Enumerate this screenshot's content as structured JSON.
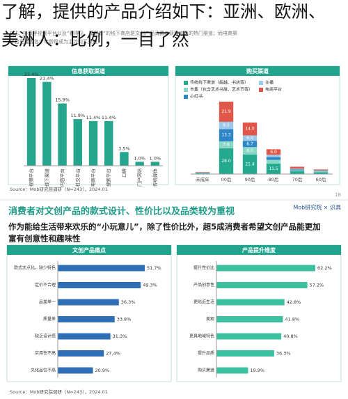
{
  "caption": {
    "lines": [
      "了解，提供的产品介绍如下：亚洲、欧洲、",
      "美洲人：比例，一目了然"
    ]
  },
  "slides": [
    {
      "intro": [
        "B站、抖音等视频平台以及“看得见、摸得着”的线下商店是文创产品消费者获取信息的热门渠道；而电商渠",
        "平台已覆盖各个年龄段成为主流购买渠道"
      ],
      "source": "Source：Mob研究院调研（N=243），2024.01",
      "page": "18"
    },
    {
      "title": "消费者对文创产品的款式设计、性价比以及品类较为重视",
      "subtitle": [
        "作为能给生活带来欢乐的“小玩意儿”，除了性价比外，超5成消费者希望文创产品能更加",
        "富有创意性和趣味性"
      ],
      "logo": "Mob研究院 × 识具",
      "source": "Source：Mob研究院调研（N=243），2024.01"
    }
  ],
  "chart_data": [
    {
      "type": "bar",
      "title": "信息获取渠道",
      "categories": [
        "视频平台",
        "线下渠道",
        "内容平台",
        "社交平台",
        "电商平台",
        "搜索平台",
        "口碑",
        "门户网站",
        "传统媒体"
      ],
      "values": [
        22.4,
        21.4,
        15.9,
        11.9,
        11.4,
        11.4,
        3.5,
        1.0,
        1.0
      ],
      "value_labels": [
        "22.4%",
        "21.4%",
        "15.9%",
        "11.9%",
        "11.4%",
        "11.4%",
        "3.5%",
        "1.0%",
        "1.0%"
      ],
      "color": "#25a48e"
    },
    {
      "type": "stacked_bar",
      "title": "购买渠道",
      "categories": [
        "未成年",
        "00后",
        "90后",
        "80后",
        "70后",
        "60后"
      ],
      "series": [
        {
          "name": "传统线下渠道（超越、书店等）",
          "color": "#25a98f",
          "values": [
            0.8,
            28.0,
            21.4,
            11.5,
            3.0,
            2.0
          ],
          "value_labels": [
            null,
            "28.0",
            "21.4",
            "11.5",
            null,
            null
          ]
        },
        {
          "name": "市集（包含艺术书展、艺术节等）",
          "color": "#8ad8c8",
          "values": [
            0.3,
            7.6,
            8.0,
            4.0,
            1.0,
            1.0
          ],
          "value_labels": [
            null,
            "7.6",
            "8.0",
            null,
            null,
            null
          ]
        },
        {
          "name": "小红书",
          "color": "#2e86c9",
          "values": [
            0.3,
            13.3,
            6.7,
            3.0,
            1.0,
            0.5
          ],
          "value_labels": [
            null,
            "13.3",
            "6.7",
            null,
            null,
            null
          ]
        },
        {
          "name": "主播",
          "color": "#9cc8ea",
          "values": [
            0.3,
            8.0,
            6.0,
            2.5,
            1.0,
            0.5
          ],
          "value_labels": [
            null,
            "8.0",
            "6.0",
            null,
            null,
            null
          ]
        },
        {
          "name": "电商平台",
          "color": "#e0574a",
          "values": [
            0.5,
            21.9,
            14.0,
            6.0,
            2.0,
            1.0
          ],
          "value_labels": [
            null,
            "21.9",
            "14.0",
            "6.0",
            null,
            null
          ]
        }
      ]
    },
    {
      "type": "hbar",
      "title": "文创产品痛点",
      "categories": [
        "款式太点化，缺少特色",
        "定价不合理",
        "品类单一",
        "质量差",
        "缺乏设计感",
        "实用性不高",
        "文化品位不高"
      ],
      "values": [
        51.7,
        49.3,
        36.3,
        33.8,
        31.3,
        27.4,
        20.9
      ],
      "value_labels": [
        "51.7%",
        "49.3%",
        "36.3%",
        "33.8%",
        "31.3%",
        "27.4%",
        "20.9%"
      ],
      "color": "#2f6fb5"
    },
    {
      "type": "hbar",
      "title": "产品提升维度",
      "categories": [
        "提升性价比",
        "产品创意性",
        "更贴近生活",
        "美观",
        "更具地域特色",
        "提升品质",
        "购买渠道"
      ],
      "values": [
        62.2,
        57.2,
        42.8,
        41.8,
        40.8,
        36.3,
        19.9
      ],
      "value_labels": [
        "62.2%",
        "57.2%",
        "42.8%",
        "41.8%",
        "40.8%",
        "36.3%",
        "19.9%"
      ],
      "color": "#3cc0a0"
    }
  ]
}
